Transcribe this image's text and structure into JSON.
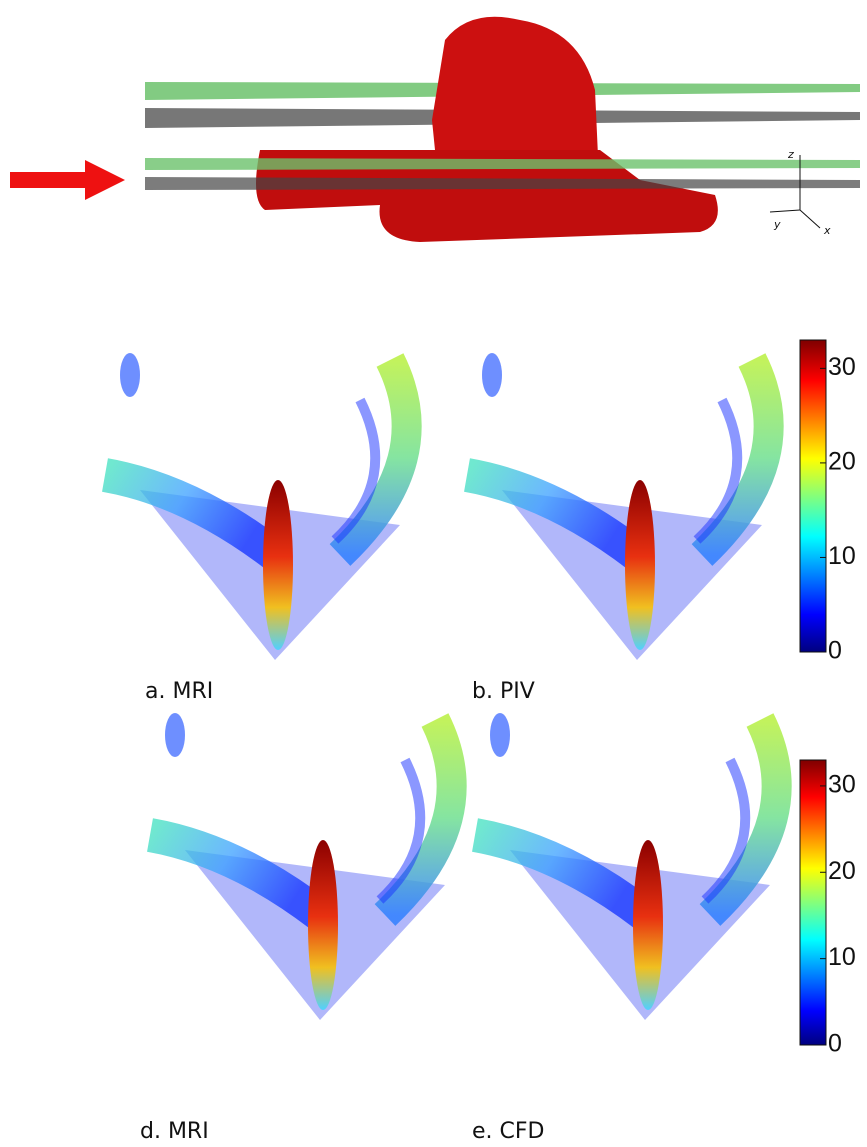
{
  "axes_labels": {
    "z": "z",
    "y": "y",
    "x": "x"
  },
  "panels": [
    {
      "label": "a. MRI"
    },
    {
      "label": "b. PIV"
    },
    {
      "label": "d. MRI"
    },
    {
      "label": "e. CFD"
    }
  ],
  "colorbars": [
    {
      "range": [
        0,
        33
      ],
      "ticks": [
        0,
        10,
        20,
        30
      ]
    },
    {
      "range": [
        0,
        33
      ],
      "ticks": [
        0,
        10,
        20,
        30
      ]
    }
  ]
}
